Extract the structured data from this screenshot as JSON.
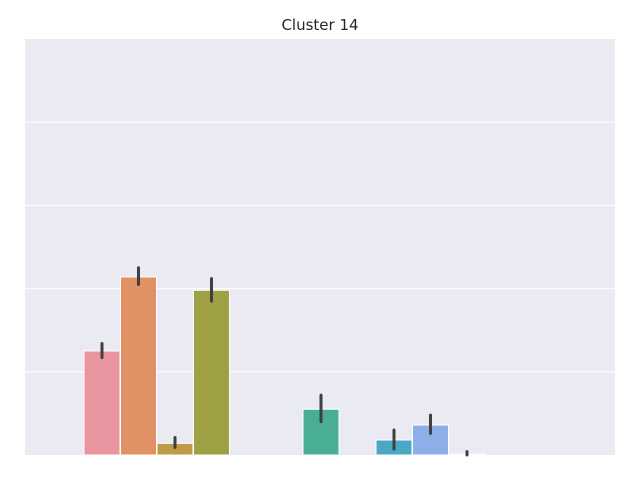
{
  "chart_data": {
    "type": "bar",
    "title": "Cluster 14",
    "xlabel": "",
    "ylabel": "",
    "ylim": [
      0,
      0.25
    ],
    "grid": true,
    "gridlines": [
      0.05,
      0.1,
      0.15,
      0.2
    ],
    "bars": [
      {
        "slot": 1,
        "value": 0.0625,
        "err_low": 0.0585,
        "err_high": 0.067,
        "color": "#e8959f"
      },
      {
        "slot": 2,
        "value": 0.107,
        "err_low": 0.1025,
        "err_high": 0.1125,
        "color": "#e09264"
      },
      {
        "slot": 3,
        "value": 0.007,
        "err_low": 0.0045,
        "err_high": 0.0105,
        "color": "#be9a4b"
      },
      {
        "slot": 4,
        "value": 0.099,
        "err_low": 0.0925,
        "err_high": 0.106,
        "color": "#9f9f44"
      },
      {
        "slot": 7,
        "value": 0.0275,
        "err_low": 0.02,
        "err_high": 0.036,
        "color": "#4aae97"
      },
      {
        "slot": 9,
        "value": 0.009,
        "err_low": 0.0035,
        "err_high": 0.015,
        "color": "#4aa7c5"
      },
      {
        "slot": 10,
        "value": 0.018,
        "err_low": 0.013,
        "err_high": 0.024,
        "color": "#8eaee8"
      },
      {
        "slot": 11,
        "value": 0.0005,
        "err_low": 0.0,
        "err_high": 0.002,
        "color": "#c4a5ea"
      }
    ]
  },
  "colors": {
    "plot_background": "#eaeaf2",
    "grid": "#ffffff",
    "error_bar": "#3f3f3f"
  }
}
